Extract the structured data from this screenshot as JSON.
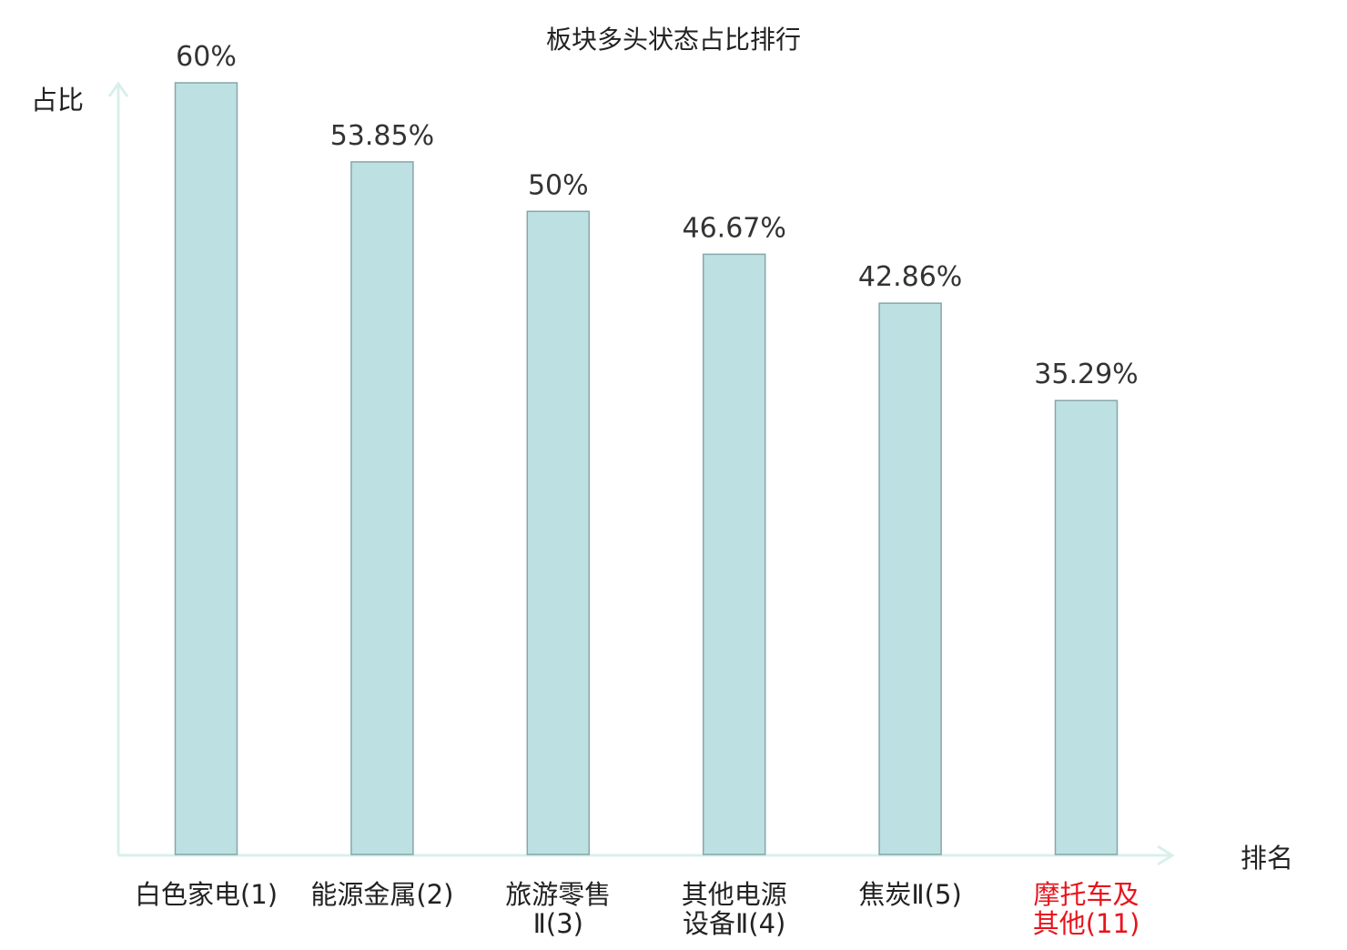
{
  "chart_data": {
    "type": "bar",
    "title": "板块多头状态占比排行",
    "ylabel": "占比",
    "xlabel": "排名",
    "ylim": [
      0,
      60
    ],
    "grid": false,
    "legend": "none",
    "categories": [
      [
        "白色家电(1)"
      ],
      [
        "能源金属(2)"
      ],
      [
        "旅游零售",
        "Ⅱ(3)"
      ],
      [
        "其他电源",
        "设备Ⅱ(4)"
      ],
      [
        "焦炭Ⅱ(5)"
      ],
      [
        "摩托车及",
        "其他(11)"
      ]
    ],
    "values": [
      60,
      53.85,
      50,
      46.67,
      42.86,
      35.29
    ],
    "value_labels": [
      "60%",
      "53.85%",
      "50%",
      "46.67%",
      "42.86%",
      "35.29%"
    ],
    "highlight_index": 5,
    "colors": {
      "bar_fill": "#bde0e3",
      "bar_stroke": "#86a6aa",
      "axis": "#d9efec",
      "text": "#222222",
      "value_text": "#333333",
      "highlight": "#e8141c"
    }
  }
}
